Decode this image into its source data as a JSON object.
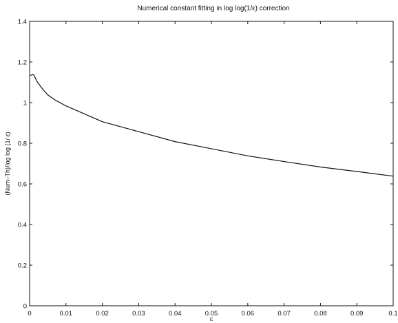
{
  "chart_data": {
    "type": "line",
    "title": "Numerical constant fitting in log log(1/ε) correction",
    "xlabel": "ε",
    "ylabel": "(Num–Th)/log log (1/ ε)",
    "xlim": [
      0,
      0.1
    ],
    "ylim": [
      0,
      1.4
    ],
    "xticks": [
      0,
      0.01,
      0.02,
      0.03,
      0.04,
      0.05,
      0.06,
      0.07,
      0.08,
      0.09,
      0.1
    ],
    "xtick_labels": [
      "0",
      "0.01",
      "0.02",
      "0.03",
      "0.04",
      "0.05",
      "0.06",
      "0.07",
      "0.08",
      "0.09",
      "0.1"
    ],
    "yticks": [
      0,
      0.2,
      0.4,
      0.6,
      0.8,
      1.0,
      1.2,
      1.4
    ],
    "ytick_labels": [
      "0",
      "0.2",
      "0.4",
      "0.6",
      "0.8",
      "1",
      "1.2",
      "1.4"
    ],
    "grid": false,
    "series": [
      {
        "color": "#111111",
        "x": [
          0.0002,
          0.0008,
          0.0012,
          0.002,
          0.003,
          0.004,
          0.005,
          0.007,
          0.01,
          0.015,
          0.02,
          0.03,
          0.04,
          0.05,
          0.06,
          0.07,
          0.08,
          0.09,
          0.1
        ],
        "y": [
          1.133,
          1.139,
          1.135,
          1.105,
          1.08,
          1.058,
          1.038,
          1.013,
          0.984,
          0.945,
          0.906,
          0.857,
          0.808,
          0.773,
          0.738,
          0.71,
          0.683,
          0.661,
          0.638
        ]
      }
    ]
  }
}
